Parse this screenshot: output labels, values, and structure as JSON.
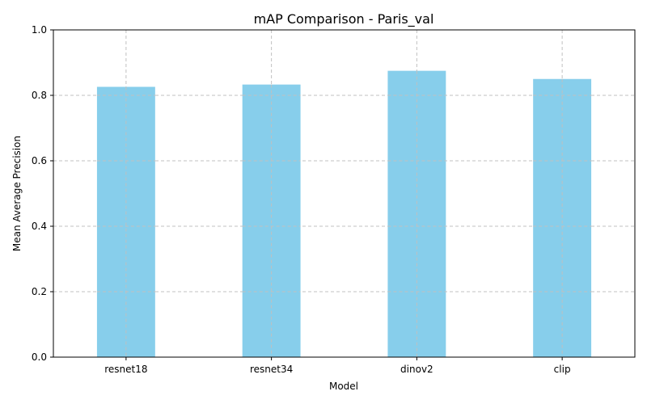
{
  "chart_data": {
    "type": "bar",
    "title": "mAP Comparison - Paris_val",
    "xlabel": "Model",
    "ylabel": "Mean Average Precision",
    "categories": [
      "resnet18",
      "resnet34",
      "dinov2",
      "clip"
    ],
    "values": [
      0.826,
      0.833,
      0.875,
      0.85
    ],
    "ylim": [
      0,
      1.0
    ],
    "yticks": [
      "0.0",
      "0.2",
      "0.4",
      "0.6",
      "0.8",
      "1.0"
    ],
    "grid": true,
    "bar_color": "#87CEEB",
    "grid_color": "#c0c0c0"
  }
}
